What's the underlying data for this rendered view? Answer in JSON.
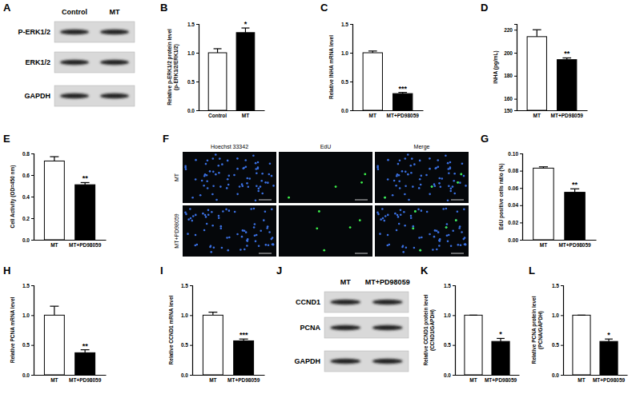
{
  "chart_data": [
    {
      "type": "blot",
      "panel": "A",
      "lanes": [
        "Control",
        "MT"
      ],
      "rows": [
        "P-ERK1/2",
        "ERK1/2",
        "GAPDH"
      ]
    },
    {
      "type": "bar",
      "panel": "B",
      "categories": [
        "Control",
        "MT"
      ],
      "values": [
        1.0,
        1.35
      ],
      "errors": [
        0.07,
        0.08
      ],
      "colors": [
        "#ffffff",
        "#000000"
      ],
      "y_label": "Relative p-ERK1/2 protein level (p-ERK1/2/ERK1/2)",
      "ylim": [
        0,
        1.5
      ],
      "yticks": [
        {
          "value": 0,
          "label": "0.0"
        },
        0.5,
        {
          "value": 1,
          "label": "1.0"
        },
        1.5
      ],
      "annotations": [
        {
          "text": "*",
          "category": "MT"
        }
      ]
    },
    {
      "type": "bar",
      "panel": "C",
      "categories": [
        "MT",
        "MT+PD98059"
      ],
      "values": [
        1.0,
        0.29
      ],
      "errors": [
        0.03,
        0.02
      ],
      "colors": [
        "#ffffff",
        "#000000"
      ],
      "y_label": "Relative INHA mRNA level",
      "ylim": [
        0,
        1.5
      ],
      "yticks": [
        {
          "value": 0,
          "label": "0.0"
        },
        0.5,
        {
          "value": 1,
          "label": "1.0"
        },
        1.5
      ],
      "annotations": [
        {
          "text": "***",
          "category": "MT+PD98059"
        }
      ]
    },
    {
      "type": "bar",
      "panel": "D",
      "categories": [
        "MT",
        "MT+PD98059"
      ],
      "values": [
        214,
        194
      ],
      "errors": [
        6,
        1.5
      ],
      "colors": [
        "#ffffff",
        "#000000"
      ],
      "y_label": "INHA (pg/mL)",
      "ylim": [
        150,
        225
      ],
      "yticks": [
        150,
        160,
        180,
        200,
        220
      ],
      "annotations": [
        {
          "text": "**",
          "category": "MT+PD98059"
        }
      ]
    },
    {
      "type": "bar",
      "panel": "E",
      "categories": [
        "MT",
        "MT+PD98059"
      ],
      "values": [
        0.73,
        0.51
      ],
      "errors": [
        0.04,
        0.02
      ],
      "colors": [
        "#ffffff",
        "#000000"
      ],
      "y_label": "Cell Activity (OD=450 nm)",
      "ylim": [
        0,
        0.8
      ],
      "yticks": [
        {
          "value": 0,
          "label": "0.0"
        },
        0.2,
        0.4,
        0.6,
        0.8
      ],
      "annotations": [
        {
          "text": "**",
          "category": "MT+PD98059"
        }
      ]
    },
    {
      "type": "image",
      "panel": "F",
      "columns": [
        "Hoechst 33342",
        "EdU",
        "Merge"
      ],
      "rows": [
        "MT",
        "MT+PD98059"
      ]
    },
    {
      "type": "bar",
      "panel": "G",
      "categories": [
        "MT",
        "MT+PD98059"
      ],
      "values": [
        0.083,
        0.055
      ],
      "errors": [
        0.0015,
        0.004
      ],
      "colors": [
        "#ffffff",
        "#000000"
      ],
      "y_label": "EdU positive cells ratio (%)",
      "ylim": [
        0,
        0.1
      ],
      "yticks": [
        {
          "value": 0,
          "label": "0.00"
        },
        0.02,
        0.04,
        0.06,
        0.08,
        {
          "value": 0.1,
          "label": "0.10"
        }
      ],
      "annotations": [
        {
          "text": "**",
          "category": "MT+PD98059"
        }
      ]
    },
    {
      "type": "bar",
      "panel": "H",
      "categories": [
        "MT",
        "MT+PD98059"
      ],
      "values": [
        1.0,
        0.37
      ],
      "errors": [
        0.15,
        0.05
      ],
      "colors": [
        "#ffffff",
        "#000000"
      ],
      "y_label": "Relative PCNA mRNA level",
      "ylim": [
        0,
        1.5
      ],
      "yticks": [
        {
          "value": 0,
          "label": "0.0"
        },
        0.5,
        {
          "value": 1,
          "label": "1.0"
        },
        1.5
      ],
      "annotations": [
        {
          "text": "**",
          "category": "MT+PD98059"
        }
      ]
    },
    {
      "type": "bar",
      "panel": "I",
      "categories": [
        "MT",
        "MT+PD98059"
      ],
      "values": [
        1.0,
        0.57
      ],
      "errors": [
        0.05,
        0.03
      ],
      "colors": [
        "#ffffff",
        "#000000"
      ],
      "y_label": "Relative CCND1 mRNA level",
      "ylim": [
        0,
        1.5
      ],
      "yticks": [
        {
          "value": 0,
          "label": "0.0"
        },
        0.5,
        {
          "value": 1,
          "label": "1.0"
        },
        1.5
      ],
      "annotations": [
        {
          "text": "***",
          "category": "MT+PD98059"
        }
      ]
    },
    {
      "type": "blot",
      "panel": "J",
      "lanes": [
        "MT",
        "MT+PD98059"
      ],
      "rows": [
        "CCND1",
        "PCNA",
        "GAPDH"
      ]
    },
    {
      "type": "bar",
      "panel": "K",
      "categories": [
        "MT",
        "MT+PD98059"
      ],
      "values": [
        1.0,
        0.56
      ],
      "errors": [
        0,
        0.05
      ],
      "colors": [
        "#ffffff",
        "#000000"
      ],
      "y_label": "Relative CCND1 protein level (CCND1/GAPDH)",
      "ylim": [
        0,
        1.5
      ],
      "yticks": [
        {
          "value": 0,
          "label": "0.0"
        },
        0.5,
        {
          "value": 1,
          "label": "1.0"
        },
        1.5
      ],
      "annotations": [
        {
          "text": "*",
          "category": "MT+PD98059"
        }
      ]
    },
    {
      "type": "bar",
      "panel": "L",
      "categories": [
        "MT",
        "MT+PD98059"
      ],
      "values": [
        1.0,
        0.56
      ],
      "errors": [
        0,
        0.04
      ],
      "colors": [
        "#ffffff",
        "#000000"
      ],
      "y_label": "Relative PCNA protein level (PCNA/GAPDH)",
      "ylim": [
        0,
        1.5
      ],
      "yticks": [
        {
          "value": 0,
          "label": "0.0"
        },
        0.5,
        {
          "value": 1,
          "label": "1.0"
        },
        1.5
      ],
      "annotations": [
        {
          "text": "*",
          "category": "MT+PD98059"
        }
      ]
    }
  ]
}
